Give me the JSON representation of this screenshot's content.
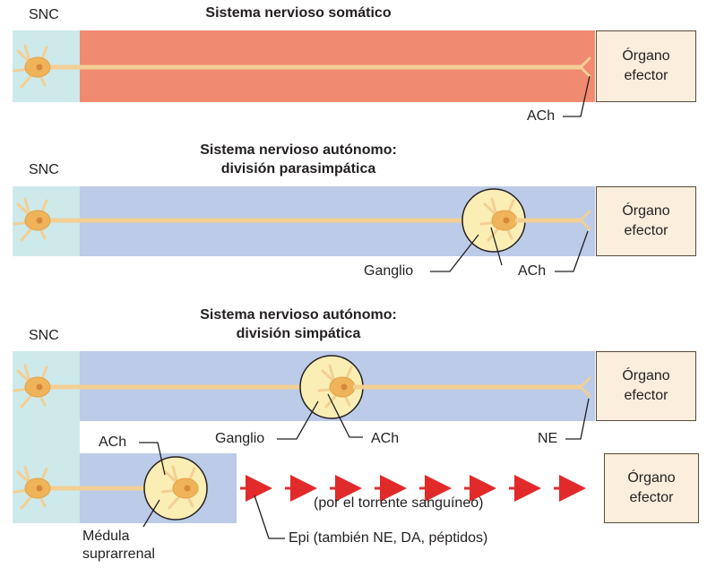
{
  "panels": [
    {
      "title": "Sistema nervioso somático",
      "cns_label": "SNC",
      "organ_label": "Órgano efector",
      "labels": {
        "neurotransmitter": "ACh"
      }
    },
    {
      "title_line1": "Sistema nervioso autónomo:",
      "title_line2": "división parasimpática",
      "cns_label": "SNC",
      "organ_label": "Órgano efector",
      "labels": {
        "ganglion": "Ganglio",
        "neurotransmitter": "ACh"
      }
    },
    {
      "title_line1": "Sistema nervioso autónomo:",
      "title_line2": "división simpática",
      "cns_label": "SNC",
      "organ_label": "Órgano efector",
      "organ_label_2": "Órgano efector",
      "labels": {
        "ganglion": "Ganglio",
        "neurotransmitter_ganglion": "ACh",
        "neurotransmitter_terminal": "NE",
        "neurotransmitter_adrenal": "ACh",
        "adrenal_line1": "Médula",
        "adrenal_line2": "suprarrenal",
        "bloodstream": "(por el torrente sanguíneo)",
        "hormones": "Epi (también NE, DA, péptidos)"
      }
    }
  ],
  "colors": {
    "cns_region": "#cde9ea",
    "somatic_band": "#f08a70",
    "autonomic_band": "#bccbe8",
    "axon": "#f3cf93",
    "neuron_body": "#efb45a",
    "ganglion_fill": "#fbeeb4",
    "organ_fill": "#fbeedd",
    "arrow": "#e12b2b"
  }
}
